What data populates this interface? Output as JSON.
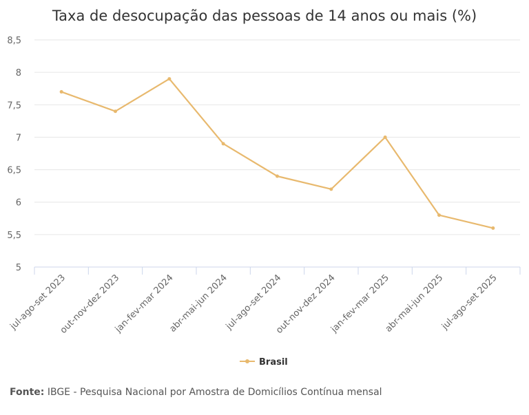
{
  "chart_data": {
    "type": "line",
    "title": "Taxa de desocupação das pessoas de 14 anos ou mais (%)",
    "categories": [
      "jul-ago-set 2023",
      "out-nov-dez 2023",
      "jan-fev-mar 2024",
      "abr-mai-jun 2024",
      "jul-ago-set 2024",
      "out-nov-dez 2024",
      "jan-fev-mar 2025",
      "abr-mai-jun 2025",
      "jul-ago-set 2025"
    ],
    "series": [
      {
        "name": "Brasil",
        "values": [
          7.7,
          7.4,
          7.9,
          6.9,
          6.4,
          6.2,
          7.0,
          5.8,
          5.6
        ],
        "color": "#e8b96e"
      }
    ],
    "ylim": [
      5,
      8.5
    ],
    "yticks": [
      5,
      5.5,
      6,
      6.5,
      7,
      7.5,
      8,
      8.5
    ],
    "ytick_labels": [
      "5",
      "5,5",
      "6",
      "6,5",
      "7",
      "7,5",
      "8",
      "8,5"
    ],
    "xlabel": "",
    "ylabel": "",
    "grid": true,
    "legend": "bottom-center"
  },
  "source": {
    "label": "Fonte:",
    "text": "IBGE - Pesquisa Nacional por Amostra de Domicílios Contínua mensal"
  }
}
